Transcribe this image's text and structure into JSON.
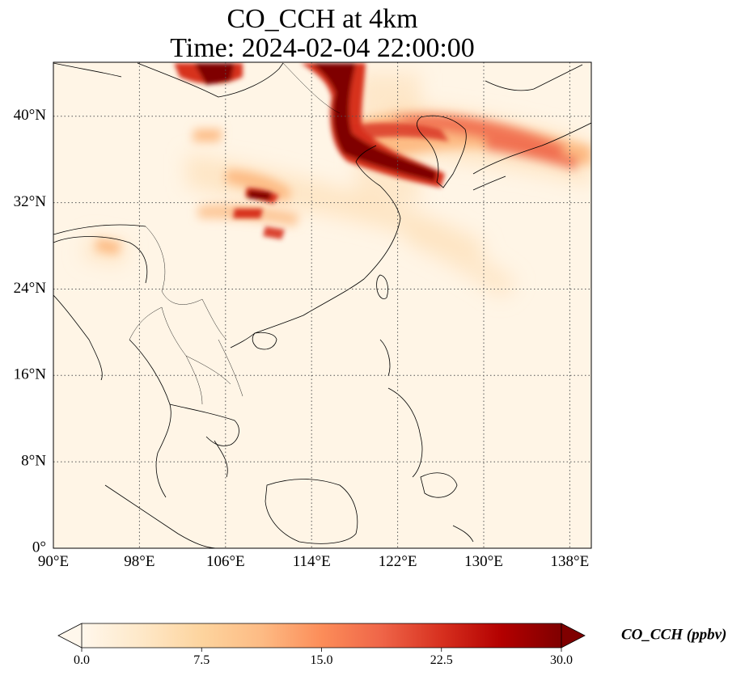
{
  "map": {
    "title_line1": "CO_CCH at 4km",
    "title_line2": "Time: 2024-02-04 22:00:00",
    "projection": "PlateCarree",
    "lon_range": [
      90,
      140
    ],
    "lat_range": [
      0,
      45
    ],
    "gridlines": "dotted",
    "lon_ticks": [
      {
        "value": 90,
        "label": "90°E"
      },
      {
        "value": 98,
        "label": "98°E"
      },
      {
        "value": 106,
        "label": "106°E"
      },
      {
        "value": 114,
        "label": "114°E"
      },
      {
        "value": 122,
        "label": "122°E"
      },
      {
        "value": 130,
        "label": "130°E"
      },
      {
        "value": 138,
        "label": "138°E"
      }
    ],
    "lat_ticks": [
      {
        "value": 0,
        "label": "0°"
      },
      {
        "value": 8,
        "label": "8°N"
      },
      {
        "value": 16,
        "label": "16°N"
      },
      {
        "value": 24,
        "label": "24°N"
      },
      {
        "value": 32,
        "label": "32°N"
      },
      {
        "value": 40,
        "label": "40°N"
      }
    ],
    "colormap": "OrRd",
    "background_color": "#fff5e6",
    "plume_colors": [
      "#fde0b8",
      "#fdbb84",
      "#ef6548",
      "#d7301f",
      "#7f0000"
    ]
  },
  "colorbar": {
    "label": "CO_CCH (ppbv)",
    "min": 0,
    "max": 30,
    "extend": "both",
    "ticks": [
      "0.0",
      "7.5",
      "15.0",
      "22.5",
      "30.0"
    ],
    "tick_values": [
      0,
      7.5,
      15,
      22.5,
      30
    ],
    "stops": [
      "#fff7ec",
      "#fee8c8",
      "#fdd49e",
      "#fdbb84",
      "#fc8d59",
      "#ef6548",
      "#d7301f",
      "#b30000",
      "#7f0000"
    ]
  }
}
